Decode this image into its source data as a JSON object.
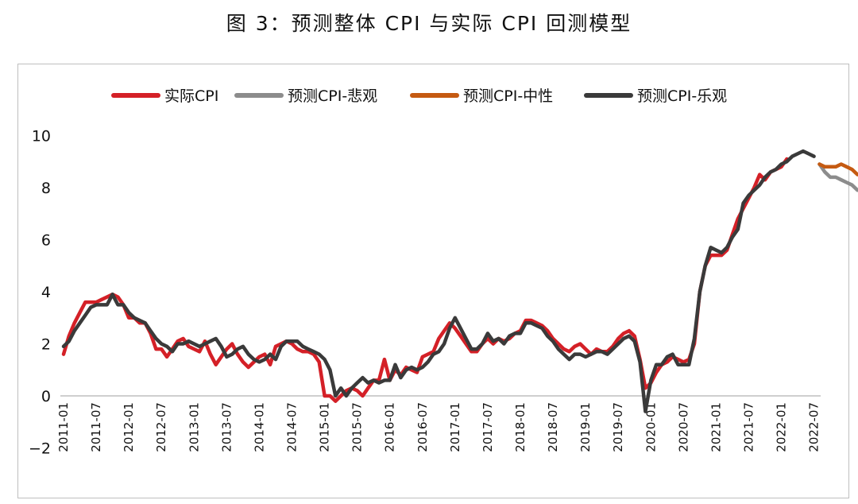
{
  "title": "图 3：预测整体 CPI 与实际 CPI 回测模型",
  "chart_data": {
    "type": "line",
    "legend_position": "top",
    "grid": false,
    "ylim": [
      -2,
      10
    ],
    "yticks": [
      -2,
      0,
      2,
      4,
      6,
      8,
      10
    ],
    "xticks": [
      "2011-01",
      "2011-07",
      "2012-01",
      "2012-07",
      "2013-01",
      "2013-07",
      "2014-01",
      "2014-07",
      "2015-01",
      "2015-07",
      "2016-01",
      "2016-07",
      "2017-01",
      "2017-07",
      "2018-01",
      "2018-07",
      "2019-01",
      "2019-07",
      "2020-01",
      "2020-07",
      "2021-01",
      "2021-07",
      "2022-01",
      "2022-07"
    ],
    "x_start": "2011-01",
    "series": [
      {
        "name": "实际CPI",
        "color": "#d42027",
        "values": [
          1.6,
          2.3,
          2.8,
          3.2,
          3.6,
          3.6,
          3.6,
          3.7,
          3.8,
          3.9,
          3.8,
          3.5,
          3.0,
          3.0,
          2.8,
          2.8,
          2.4,
          1.8,
          1.8,
          1.5,
          1.8,
          2.1,
          2.2,
          1.9,
          1.8,
          1.7,
          2.1,
          1.6,
          1.2,
          1.5,
          1.8,
          2.0,
          1.6,
          1.3,
          1.1,
          1.3,
          1.5,
          1.6,
          1.2,
          1.9,
          2.0,
          2.1,
          2.0,
          1.8,
          1.7,
          1.7,
          1.6,
          1.3,
          0.0,
          0.0,
          -0.2,
          0.0,
          0.2,
          0.3,
          0.2,
          0.0,
          0.3,
          0.6,
          0.6,
          1.4,
          0.6,
          1.0,
          0.8,
          1.1,
          1.0,
          0.9,
          1.5,
          1.6,
          1.7,
          2.2,
          2.5,
          2.8,
          2.6,
          2.3,
          2.0,
          1.7,
          1.7,
          2.0,
          2.2,
          2.0,
          2.2,
          2.1,
          2.2,
          2.4,
          2.5,
          2.9,
          2.9,
          2.8,
          2.7,
          2.5,
          2.2,
          2.0,
          1.8,
          1.7,
          1.9,
          2.0,
          1.8,
          1.6,
          1.8,
          1.7,
          1.7,
          1.9,
          2.2,
          2.4,
          2.5,
          2.3,
          1.4,
          0.3,
          0.5,
          0.9,
          1.2,
          1.3,
          1.5,
          1.4,
          1.3,
          1.4,
          2.0,
          4.0,
          5.0,
          5.4,
          5.4,
          5.4,
          5.6,
          6.2,
          6.8,
          7.2,
          7.6,
          8.0,
          8.5,
          8.3,
          8.6,
          8.7,
          8.8,
          9.1
        ]
      },
      {
        "name": "预测CPI-悲观",
        "color": "#8c8c8c",
        "values": [
          8.9,
          8.6,
          8.4,
          8.4,
          8.3,
          8.2,
          8.1,
          7.9
        ]
      },
      {
        "name": "预测CPI-中性",
        "color": "#c55a11",
        "values": [
          8.9,
          8.8,
          8.8,
          8.8,
          8.9,
          8.8,
          8.7,
          8.5
        ]
      },
      {
        "name": "预测CPI-乐观",
        "color": "#3a3a3a",
        "values": [
          1.9,
          2.1,
          2.5,
          2.8,
          3.1,
          3.4,
          3.5,
          3.5,
          3.5,
          3.9,
          3.5,
          3.5,
          3.2,
          3.0,
          2.9,
          2.8,
          2.5,
          2.2,
          2.0,
          1.9,
          1.7,
          2.0,
          2.0,
          2.1,
          2.0,
          1.9,
          2.0,
          2.1,
          2.2,
          1.9,
          1.5,
          1.6,
          1.8,
          1.9,
          1.6,
          1.4,
          1.3,
          1.4,
          1.6,
          1.4,
          1.9,
          2.1,
          2.1,
          2.1,
          1.9,
          1.8,
          1.7,
          1.6,
          1.4,
          1.0,
          0.0,
          0.3,
          0.0,
          0.3,
          0.5,
          0.7,
          0.5,
          0.6,
          0.5,
          0.6,
          0.6,
          1.2,
          0.7,
          1.0,
          1.1,
          1.0,
          1.1,
          1.3,
          1.6,
          1.7,
          2.0,
          2.6,
          3.0,
          2.6,
          2.2,
          1.8,
          1.8,
          2.0,
          2.4,
          2.1,
          2.2,
          2.0,
          2.3,
          2.4,
          2.4,
          2.8,
          2.8,
          2.7,
          2.6,
          2.3,
          2.1,
          1.8,
          1.6,
          1.4,
          1.6,
          1.6,
          1.5,
          1.6,
          1.7,
          1.7,
          1.6,
          1.8,
          2.0,
          2.2,
          2.3,
          2.1,
          1.3,
          -0.6,
          0.6,
          1.2,
          1.2,
          1.5,
          1.6,
          1.2,
          1.2,
          1.2,
          2.2,
          4.0,
          5.0,
          5.7,
          5.6,
          5.5,
          5.7,
          6.1,
          6.4,
          7.4,
          7.7,
          7.9,
          8.1,
          8.4,
          8.6,
          8.7,
          8.9,
          9.0,
          9.2,
          9.3,
          9.4,
          9.3,
          9.2
        ]
      }
    ],
    "forecast_start_index": 139
  }
}
